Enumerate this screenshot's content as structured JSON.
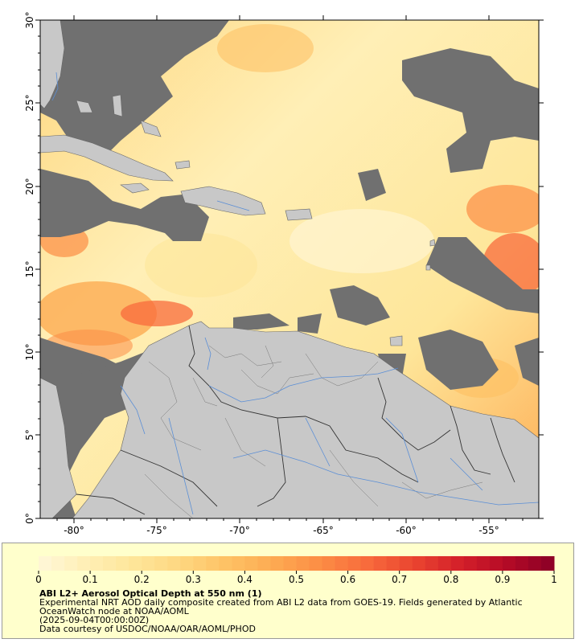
{
  "map": {
    "lon_ticks": [
      "-80°",
      "-75°",
      "-70°",
      "-65°",
      "-60°",
      "-55°"
    ],
    "lat_ticks": [
      "0°",
      "5°",
      "10°",
      "15°",
      "20°",
      "25°",
      "30°"
    ],
    "lon_range": [
      -82.5,
      -52.5
    ],
    "lat_range": [
      0,
      30
    ],
    "colors": {
      "land": "#c8c8c8",
      "cloud_mask": "#707070",
      "rivers": "#5a8ed6",
      "borders": "#333333"
    }
  },
  "legend": {
    "colorbar_ticks": [
      "0",
      "0.1",
      "0.2",
      "0.3",
      "0.4",
      "0.5",
      "0.6",
      "0.7",
      "0.8",
      "0.9",
      "1"
    ],
    "colorbar_range": [
      0,
      1
    ],
    "colormap": [
      "#fff7d9",
      "#ffefb6",
      "#fee69a",
      "#fed781",
      "#fec265",
      "#fdab52",
      "#fc8d45",
      "#f86b3c",
      "#ea4530",
      "#d4202a",
      "#b40a26",
      "#8a0026"
    ],
    "title": "ABI L2+ Aerosol Optical Depth at 550 nm (1)",
    "description": "Experimental NRT AOD daily composite created from ABI L2 data from GOES-19. Fields generated by Atlantic OceanWatch node at NOAA/AOML",
    "date": "(2025-09-04T00:00:00Z)",
    "credit": "Data courtesy of USDOC/NOAA/OAR/AOML/PHOD"
  }
}
